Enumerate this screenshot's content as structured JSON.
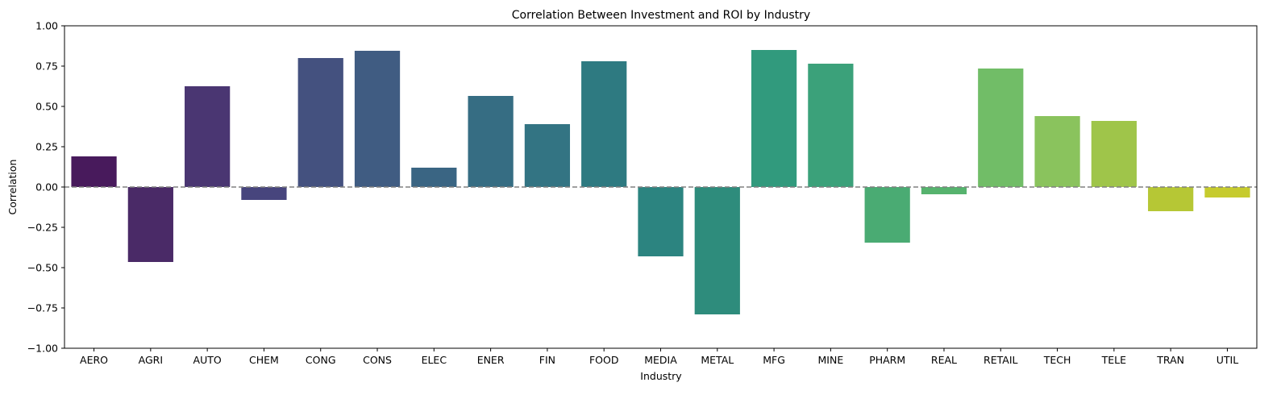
{
  "chart_data": {
    "type": "bar",
    "title": "Correlation Between Investment and ROI by Industry",
    "xlabel": "Industry",
    "ylabel": "Correlation",
    "ylim": [
      -1.0,
      1.0
    ],
    "yticks": [
      "−1.00",
      "−0.75",
      "−0.50",
      "−0.25",
      "0.00",
      "0.25",
      "0.50",
      "0.75",
      "1.00"
    ],
    "ytick_values": [
      -1.0,
      -0.75,
      -0.5,
      -0.25,
      0.0,
      0.25,
      0.5,
      0.75,
      1.0
    ],
    "grid": false,
    "reference_line": {
      "y": 0.0,
      "style": "dashed",
      "color": "#808080"
    },
    "categories": [
      "AERO",
      "AGRI",
      "AUTO",
      "CHEM",
      "CONG",
      "CONS",
      "ELEC",
      "ENER",
      "FIN",
      "FOOD",
      "MEDIA",
      "METAL",
      "MFG",
      "MINE",
      "PHARM",
      "REAL",
      "RETAIL",
      "TECH",
      "TELE",
      "TRAN",
      "UTIL"
    ],
    "values": [
      0.19,
      -0.465,
      0.625,
      -0.08,
      0.8,
      0.845,
      0.12,
      0.565,
      0.39,
      0.78,
      -0.43,
      -0.79,
      0.85,
      0.765,
      -0.345,
      -0.045,
      0.735,
      0.44,
      0.41,
      -0.15,
      -0.065
    ],
    "colors": [
      "#481a5c",
      "#4a2a67",
      "#4a3672",
      "#47457d",
      "#44517f",
      "#405c82",
      "#3a6583",
      "#366d83",
      "#337483",
      "#2e7a81",
      "#2c8480",
      "#2e8c7c",
      "#319a7d",
      "#3ba17a",
      "#4aab73",
      "#56b36e",
      "#71bd67",
      "#8ac35d",
      "#9fc54a",
      "#b6c735",
      "#c6cb2e"
    ]
  }
}
